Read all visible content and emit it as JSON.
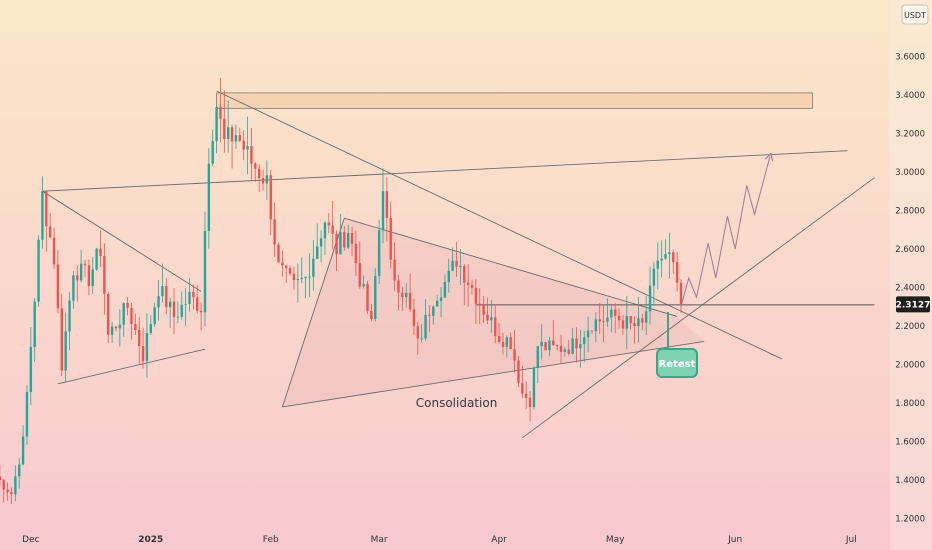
{
  "currency_label": "USDT",
  "price_badge": "2.3127",
  "consolidation_label": "Consolidation",
  "retest_label": "Retest",
  "colors": {
    "bg_top": "#fbe7c8",
    "bg_bottom": "#f8c9cf",
    "up": "#26a69a",
    "down": "#ef5350",
    "line": "#6b6b6b",
    "zone_fill": "#f3c99f",
    "triangle_fill": "#e9b5b5",
    "badge_bg": "#1e1e1e",
    "retest": "#3fa585",
    "projection": "#a07a9a"
  },
  "chart_data": {
    "type": "candlestick",
    "title": "",
    "y_axis": {
      "unit": "USDT",
      "range": [
        1.1,
        3.83
      ],
      "ticks": [
        "3.6000",
        "3.4000",
        "3.2000",
        "3.0000",
        "2.8000",
        "2.6000",
        "2.4000",
        "2.2000",
        "2.0000",
        "1.8000",
        "1.6000",
        "1.4000",
        "1.2000"
      ]
    },
    "x_axis": {
      "range": [
        "2024-11-22",
        "2025-07-07"
      ],
      "ticks": [
        {
          "date": "2024-12-01",
          "label": "Dec"
        },
        {
          "date": "2025-01-01",
          "label": "2025"
        },
        {
          "date": "2025-02-01",
          "label": "Feb"
        },
        {
          "date": "2025-03-01",
          "label": "Mar"
        },
        {
          "date": "2025-04-01",
          "label": "Apr"
        },
        {
          "date": "2025-05-01",
          "label": "May"
        },
        {
          "date": "2025-06-01",
          "label": "Jun"
        },
        {
          "date": "2025-07-01",
          "label": "Jul"
        }
      ]
    },
    "last_price": 2.3127,
    "candles_anchor": [
      [
        "2024-11-22",
        1.42
      ],
      [
        "2024-11-26",
        1.33
      ],
      [
        "2024-11-29",
        1.6
      ],
      [
        "2024-12-02",
        2.35
      ],
      [
        "2024-12-04",
        2.88
      ],
      [
        "2024-12-07",
        2.55
      ],
      [
        "2024-12-09",
        2.0
      ],
      [
        "2024-12-12",
        2.5
      ],
      [
        "2024-12-16",
        2.45
      ],
      [
        "2024-12-19",
        2.6
      ],
      [
        "2024-12-21",
        2.15
      ],
      [
        "2024-12-26",
        2.3
      ],
      [
        "2024-12-30",
        2.05
      ],
      [
        "2025-01-03",
        2.4
      ],
      [
        "2025-01-07",
        2.25
      ],
      [
        "2025-01-11",
        2.35
      ],
      [
        "2025-01-14",
        2.3
      ],
      [
        "2025-01-16",
        3.1
      ],
      [
        "2025-01-18",
        3.35
      ],
      [
        "2025-01-20",
        3.15
      ],
      [
        "2025-01-23",
        3.2
      ],
      [
        "2025-01-27",
        3.05
      ],
      [
        "2025-01-31",
        2.95
      ],
      [
        "2025-02-03",
        2.5
      ],
      [
        "2025-02-07",
        2.4
      ],
      [
        "2025-02-10",
        2.45
      ],
      [
        "2025-02-15",
        2.75
      ],
      [
        "2025-02-18",
        2.6
      ],
      [
        "2025-02-21",
        2.7
      ],
      [
        "2025-02-24",
        2.45
      ],
      [
        "2025-02-27",
        2.2
      ],
      [
        "2025-03-02",
        2.95
      ],
      [
        "2025-03-04",
        2.5
      ],
      [
        "2025-03-08",
        2.35
      ],
      [
        "2025-03-11",
        2.1
      ],
      [
        "2025-03-15",
        2.35
      ],
      [
        "2025-03-19",
        2.45
      ],
      [
        "2025-03-21",
        2.55
      ],
      [
        "2025-03-25",
        2.4
      ],
      [
        "2025-03-29",
        2.25
      ],
      [
        "2025-04-01",
        2.15
      ],
      [
        "2025-04-04",
        2.12
      ],
      [
        "2025-04-07",
        1.85
      ],
      [
        "2025-04-09",
        1.82
      ],
      [
        "2025-04-11",
        2.1
      ],
      [
        "2025-04-15",
        2.08
      ],
      [
        "2025-04-20",
        2.1
      ],
      [
        "2025-04-25",
        2.22
      ],
      [
        "2025-05-01",
        2.25
      ],
      [
        "2025-05-05",
        2.2
      ],
      [
        "2025-05-08",
        2.2
      ],
      [
        "2025-05-10",
        2.36
      ],
      [
        "2025-05-12",
        2.55
      ],
      [
        "2025-05-15",
        2.55
      ],
      [
        "2025-05-17",
        2.42
      ],
      [
        "2025-05-18",
        2.31
      ]
    ],
    "resistance_zone": {
      "from": "2025-01-18",
      "to": "2025-06-21",
      "low": 3.33,
      "high": 3.41
    },
    "trend_lines": [
      {
        "name": "upper-descending",
        "from": [
          "2025-01-18",
          3.42
        ],
        "to": [
          "2025-06-13",
          2.03
        ]
      },
      {
        "name": "rising-resistance",
        "from": [
          "2024-12-04",
          2.9
        ],
        "to": [
          "2025-06-30",
          3.11
        ]
      },
      {
        "name": "dec-pennant-top",
        "from": [
          "2024-12-04",
          2.9
        ],
        "to": [
          "2025-01-14",
          2.38
        ]
      },
      {
        "name": "dec-pennant-bottom",
        "from": [
          "2024-12-08",
          1.9
        ],
        "to": [
          "2025-01-15",
          2.08
        ]
      },
      {
        "name": "triangle-top",
        "from": [
          "2025-02-20",
          2.76
        ],
        "to": [
          "2025-05-17",
          2.25
        ]
      },
      {
        "name": "triangle-bottom",
        "from": [
          "2025-02-04",
          1.78
        ],
        "to": [
          "2025-05-24",
          2.12
        ]
      },
      {
        "name": "triangle-left-edge",
        "from": [
          "2025-02-04",
          1.78
        ],
        "to": [
          "2025-02-20",
          2.76
        ]
      },
      {
        "name": "april-support",
        "from": [
          "2025-04-07",
          1.62
        ],
        "to": [
          "2025-07-07",
          2.97
        ]
      },
      {
        "name": "horizontal-level",
        "from": [
          "2025-03-26",
          2.31
        ],
        "to": [
          "2025-07-07",
          2.31
        ]
      }
    ],
    "projection_path": [
      [
        "2025-05-18",
        2.3
      ],
      [
        "2025-05-20",
        2.45
      ],
      [
        "2025-05-22",
        2.35
      ],
      [
        "2025-05-25",
        2.63
      ],
      [
        "2025-05-27",
        2.45
      ],
      [
        "2025-05-30",
        2.77
      ],
      [
        "2025-06-01",
        2.6
      ],
      [
        "2025-06-04",
        2.93
      ],
      [
        "2025-06-06",
        2.78
      ],
      [
        "2025-06-10",
        3.08
      ]
    ],
    "annotations": [
      {
        "text": "Consolidation",
        "at": [
          "2025-03-21",
          1.8
        ]
      },
      {
        "text": "Retest",
        "at": [
          "2025-05-13",
          1.94
        ]
      }
    ]
  }
}
